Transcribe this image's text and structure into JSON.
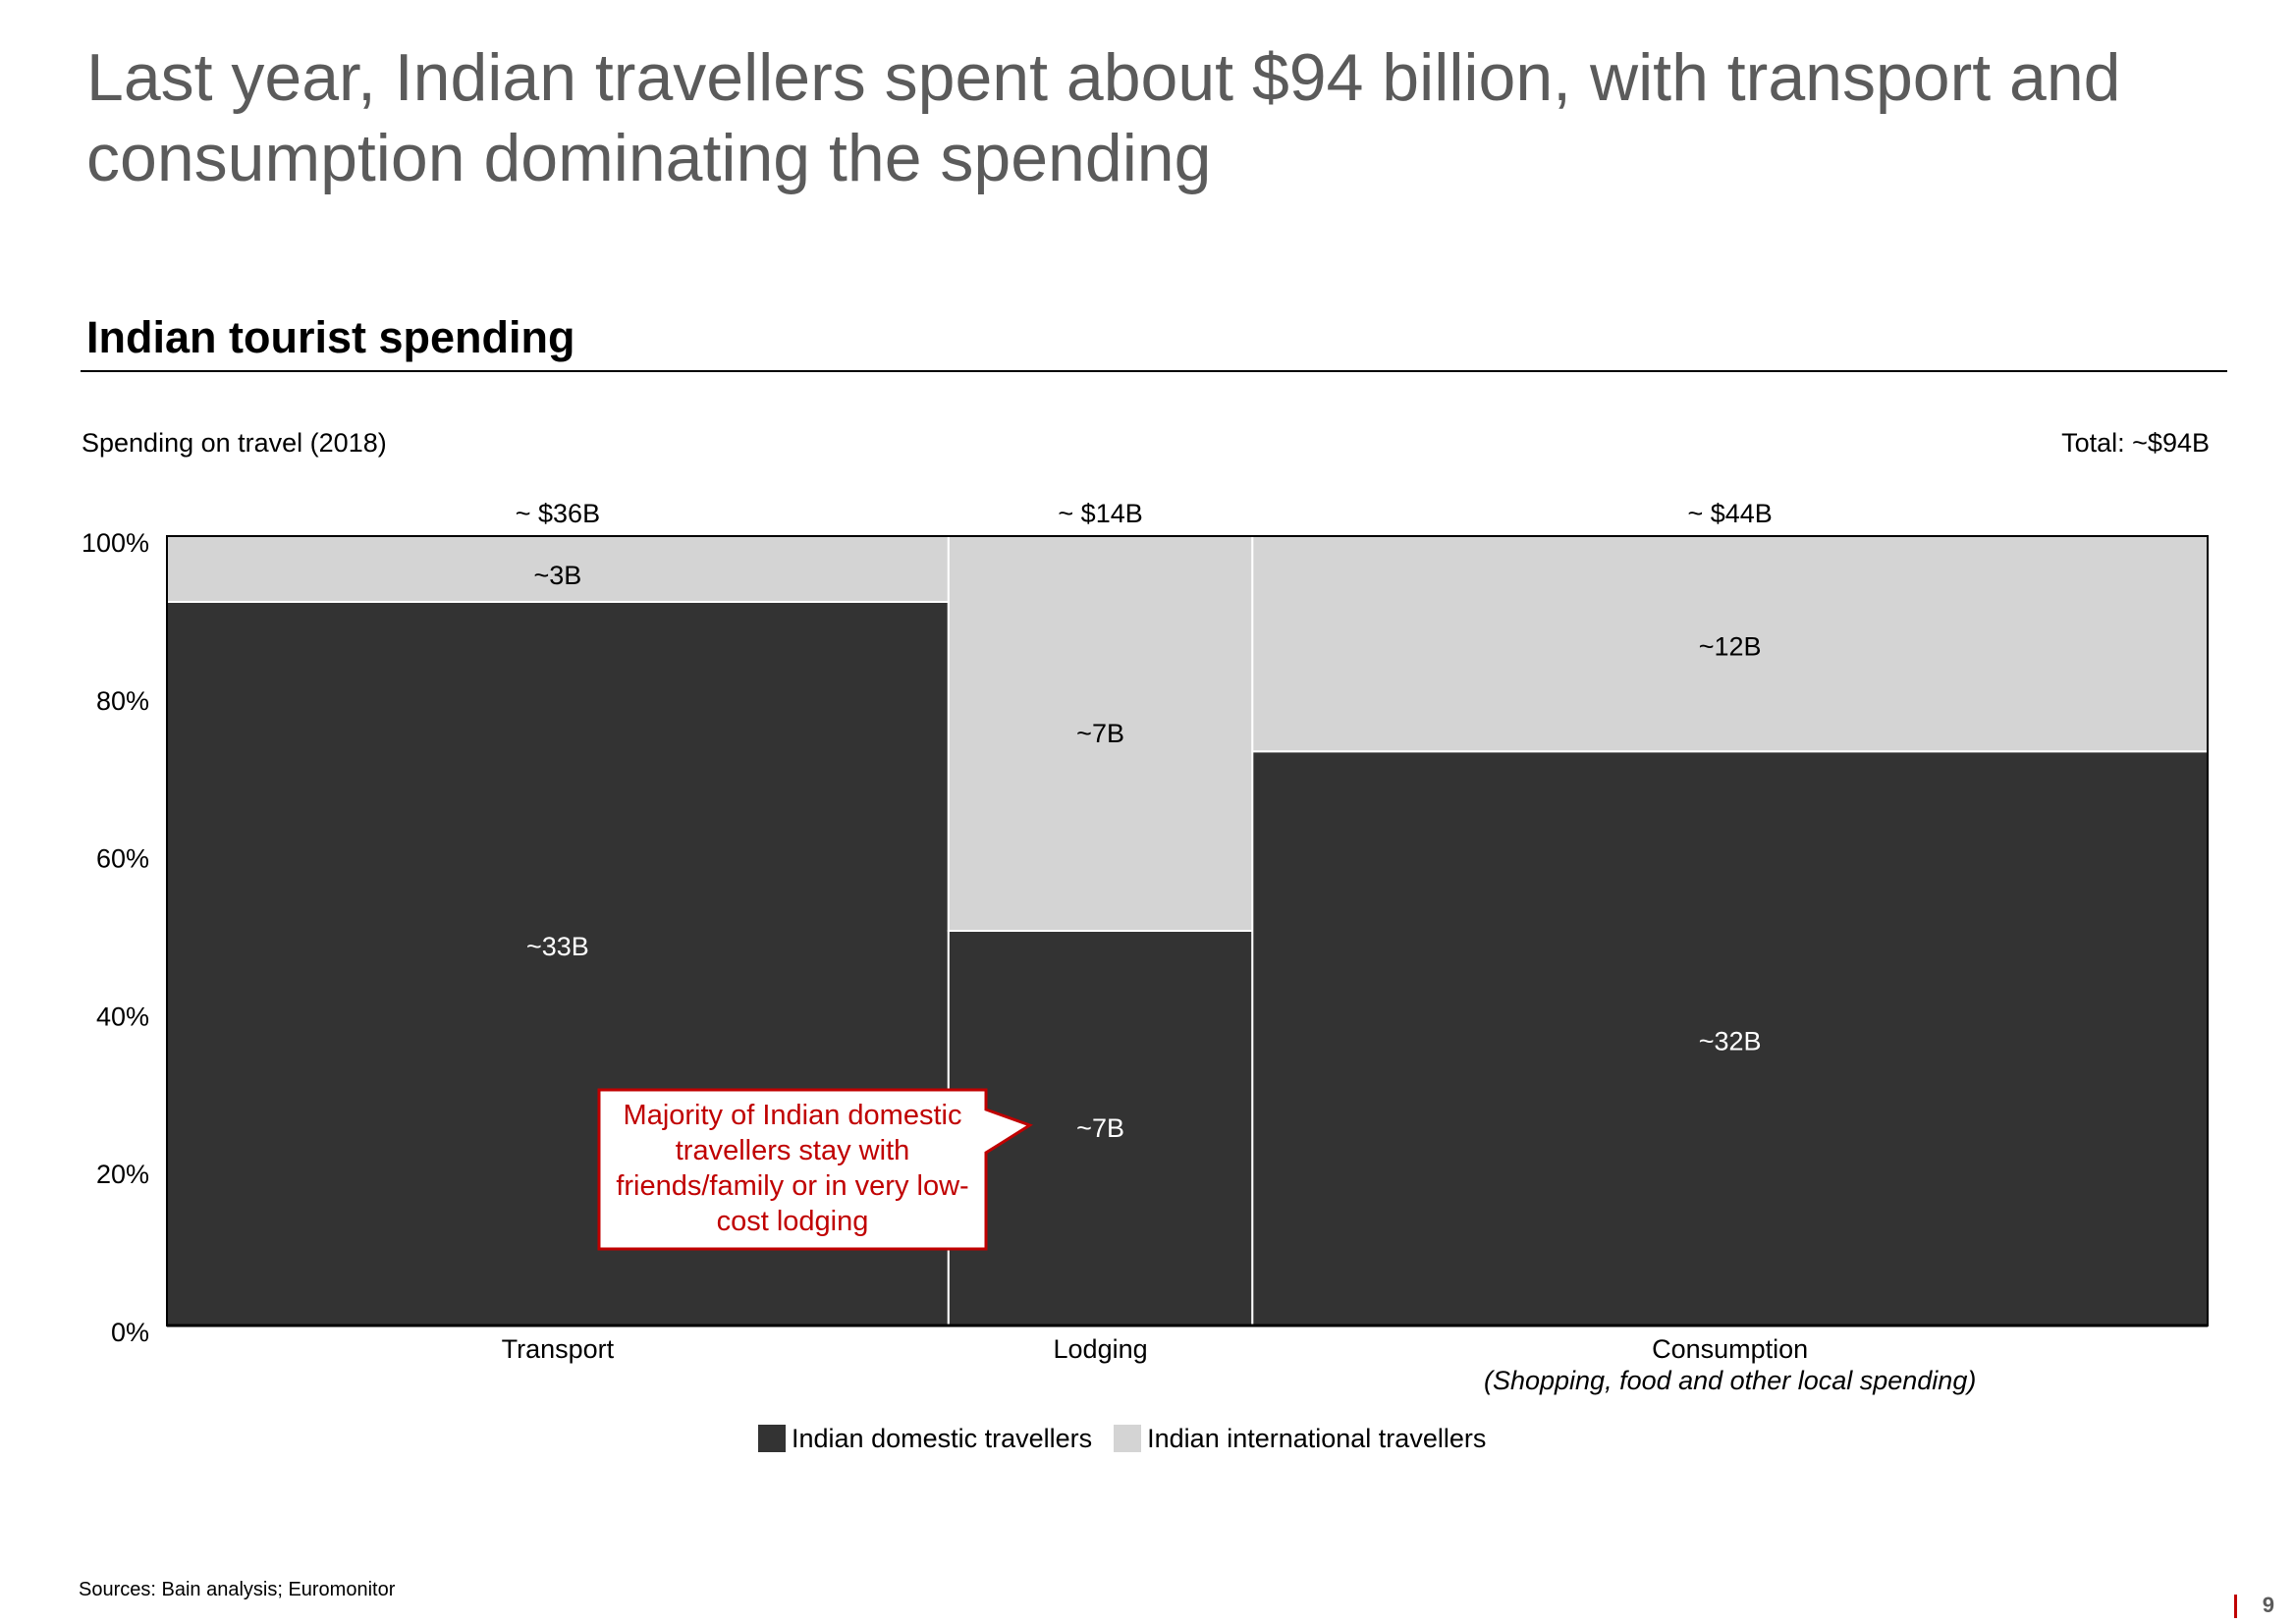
{
  "slide": {
    "headline": "Last year, Indian travellers spent about $94 billion, with transport and consumption dominating the spending",
    "section_title": "Indian tourist spending",
    "subtitle": "Spending on travel (2018)",
    "total_label": "Total: ~$94B",
    "callout": "Majority of Indian domestic travellers stay with friends/family or in very low-cost lodging",
    "source": "Sources: Bain analysis;  Euromonitor",
    "page_number": "9"
  },
  "chart_data": {
    "type": "bar",
    "subtype": "marimekko (100% stacked, variable column width)",
    "categories": [
      "Transport",
      "Lodging",
      "Consumption"
    ],
    "category_sublabels": [
      "",
      "",
      "(Shopping, food and other local spending)"
    ],
    "column_totals": [
      36,
      14,
      44
    ],
    "column_total_labels": [
      "~ $36B",
      "~ $14B",
      "~ $44B"
    ],
    "series": [
      {
        "name": "Indian domestic travellers",
        "values": [
          33,
          7,
          32
        ],
        "labels": [
          "~33B",
          "~7B",
          "~32B"
        ],
        "color": "#333333"
      },
      {
        "name": "Indian international travellers",
        "values": [
          3,
          7,
          12
        ],
        "labels": [
          "~3B",
          "~7B",
          "~12B"
        ],
        "color": "#d4d4d4"
      }
    ],
    "y_axis": {
      "ticks": [
        "0%",
        "20%",
        "40%",
        "60%",
        "80%",
        "100%"
      ],
      "ylim": [
        0,
        100
      ]
    },
    "grid": false,
    "legend_position": "bottom"
  },
  "colors": {
    "domestic": "#333333",
    "international": "#d4d4d4",
    "accent": "#c00000",
    "headline": "#5b5b5b"
  }
}
